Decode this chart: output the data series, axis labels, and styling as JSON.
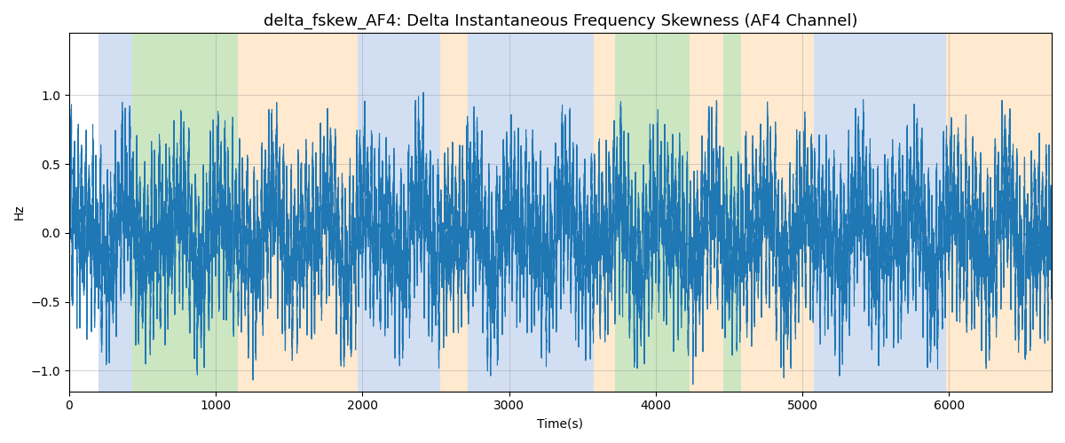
{
  "title": "delta_fskew_AF4: Delta Instantaneous Frequency Skewness (AF4 Channel)",
  "xlabel": "Time(s)",
  "ylabel": "Hz",
  "xlim": [
    0,
    6700
  ],
  "ylim": [
    -1.15,
    1.45
  ],
  "yticks": [
    -1.0,
    -0.5,
    0.0,
    0.5,
    1.0
  ],
  "line_color": "#1f77b4",
  "line_width": 0.8,
  "bg_bands": [
    {
      "xstart": 200,
      "xend": 430,
      "color": "#aec6e8",
      "alpha": 0.55
    },
    {
      "xstart": 430,
      "xend": 1150,
      "color": "#90c978",
      "alpha": 0.45
    },
    {
      "xstart": 1150,
      "xend": 1970,
      "color": "#ffd8a8",
      "alpha": 0.55
    },
    {
      "xstart": 1970,
      "xend": 2530,
      "color": "#aec6e8",
      "alpha": 0.55
    },
    {
      "xstart": 2530,
      "xend": 2720,
      "color": "#ffd8a8",
      "alpha": 0.55
    },
    {
      "xstart": 2720,
      "xend": 3580,
      "color": "#aec6e8",
      "alpha": 0.55
    },
    {
      "xstart": 3580,
      "xend": 3720,
      "color": "#ffd8a8",
      "alpha": 0.55
    },
    {
      "xstart": 3720,
      "xend": 4230,
      "color": "#90c978",
      "alpha": 0.45
    },
    {
      "xstart": 4230,
      "xend": 4460,
      "color": "#ffd8a8",
      "alpha": 0.55
    },
    {
      "xstart": 4460,
      "xend": 4580,
      "color": "#90c978",
      "alpha": 0.45
    },
    {
      "xstart": 4580,
      "xend": 5080,
      "color": "#ffd8a8",
      "alpha": 0.55
    },
    {
      "xstart": 5080,
      "xend": 5980,
      "color": "#aec6e8",
      "alpha": 0.55
    },
    {
      "xstart": 5980,
      "xend": 6700,
      "color": "#ffd8a8",
      "alpha": 0.55
    }
  ],
  "seed": 42,
  "title_fontsize": 13,
  "grid_alpha": 0.5,
  "grid_color": "#888888"
}
